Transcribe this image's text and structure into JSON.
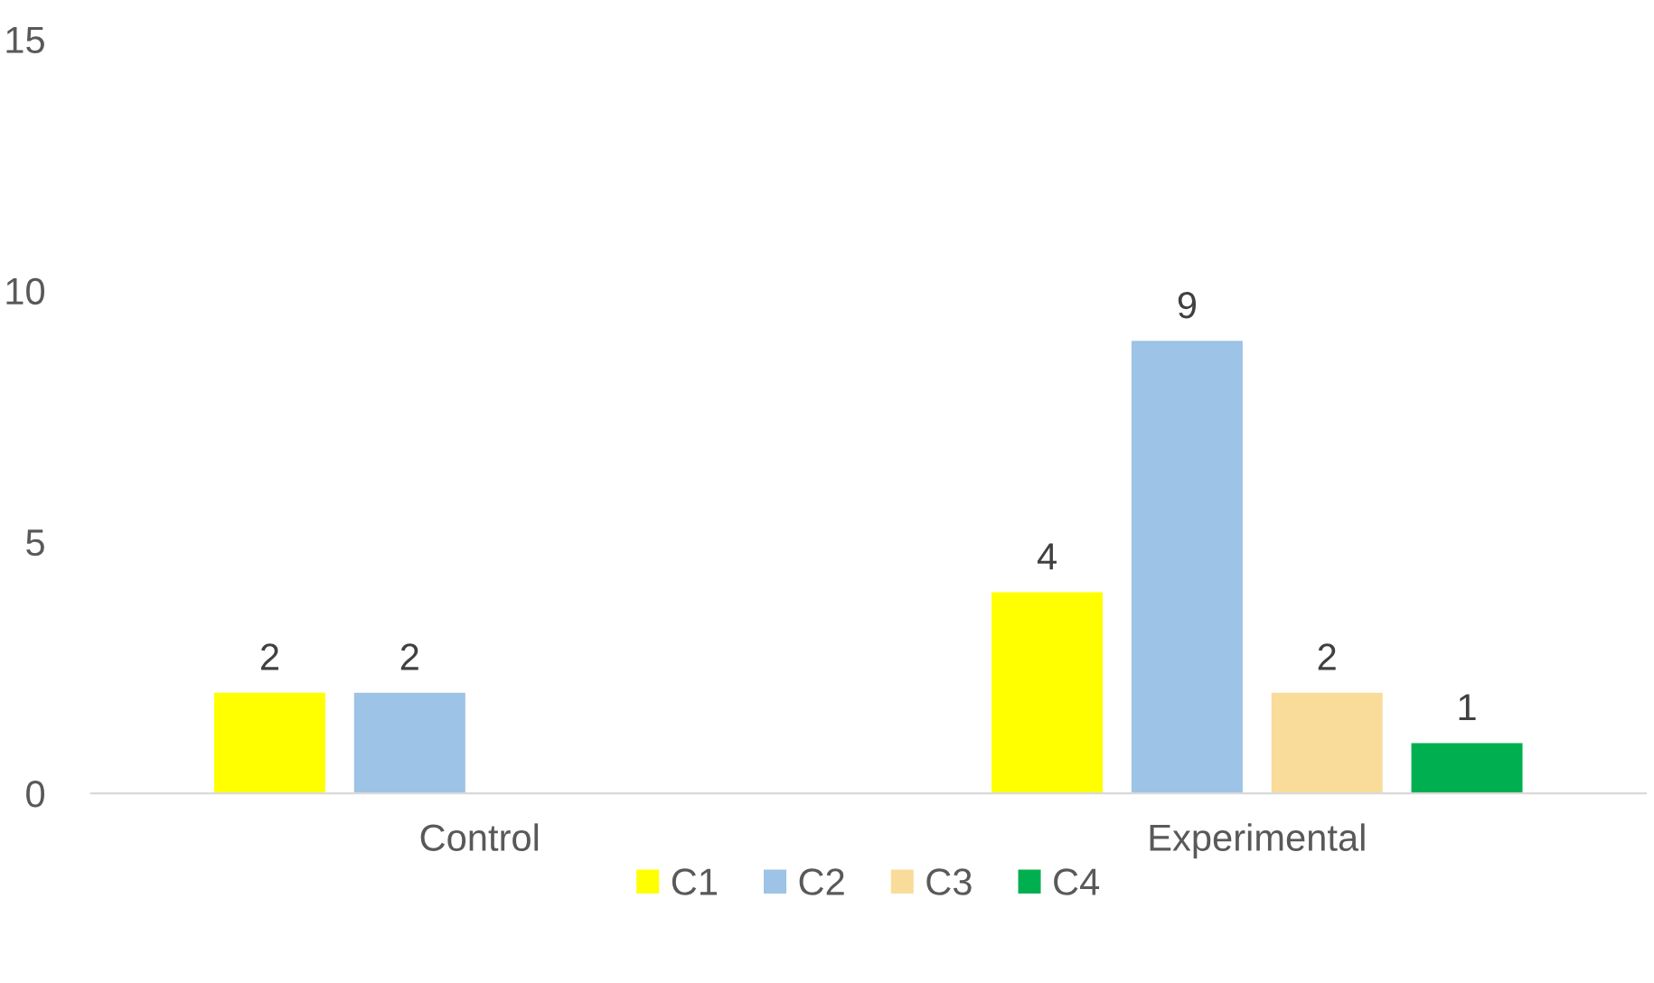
{
  "chart_data": {
    "type": "bar",
    "categories": [
      "Control",
      "Experimental"
    ],
    "series": [
      {
        "name": "C1",
        "color": "#ffff00",
        "values": [
          2,
          4
        ]
      },
      {
        "name": "C2",
        "color": "#9dc3e6",
        "values": [
          2,
          9
        ]
      },
      {
        "name": "C3",
        "color": "#f9dc9a",
        "values": [
          null,
          2
        ]
      },
      {
        "name": "C4",
        "color": "#00b050",
        "values": [
          null,
          1
        ]
      }
    ],
    "ylim": [
      0,
      15
    ],
    "yticks": [
      0,
      5,
      10,
      15
    ],
    "grid": false,
    "legend": "bottom",
    "data_labels": true
  }
}
